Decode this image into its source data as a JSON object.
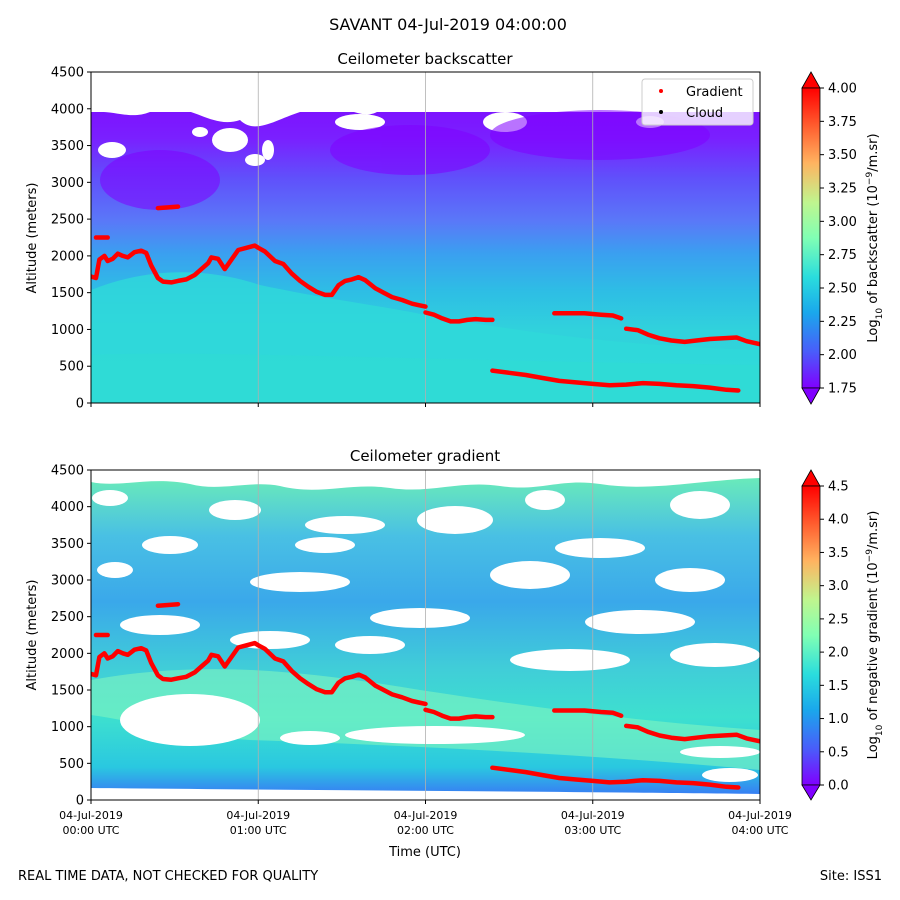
{
  "figure": {
    "suptitle": "SAVANT 04-Jul-2019 04:00:00",
    "footer_left": "REAL TIME DATA, NOT CHECKED FOR QUALITY",
    "footer_right": "Site: ISS1"
  },
  "chart_data": [
    {
      "type": "heatmap",
      "title": "Ceilometer backscatter",
      "xlabel": "Time (UTC)",
      "ylabel": "Altitude (meters)",
      "xlim_hours": [
        0,
        4
      ],
      "ylim": [
        0,
        4500
      ],
      "yticks": [
        "0",
        "500",
        "1000",
        "1500",
        "2000",
        "2500",
        "3000",
        "3500",
        "4000",
        "4500"
      ],
      "xticks": [
        {
          "line1": "04-Jul-2019",
          "line2": "00:00 UTC"
        },
        {
          "line1": "04-Jul-2019",
          "line2": "01:00 UTC"
        },
        {
          "line1": "04-Jul-2019",
          "line2": "02:00 UTC"
        },
        {
          "line1": "04-Jul-2019",
          "line2": "03:00 UTC"
        },
        {
          "line1": "04-Jul-2019",
          "line2": "04:00 UTC"
        }
      ],
      "show_xtick_labels": false,
      "colorbar": {
        "label_prefix": "Log",
        "label_sub": "10",
        "label_mid": " of backscatter (10",
        "label_sup": "−9",
        "label_suffix": "/m.sr)",
        "range": [
          1.75,
          4.0
        ],
        "ticks": [
          "1.75",
          "2.00",
          "2.25",
          "2.50",
          "2.75",
          "3.00",
          "3.25",
          "3.50",
          "3.75",
          "4.00"
        ]
      },
      "legend": {
        "position": "top-right",
        "entries": [
          {
            "label": "Gradient",
            "color": "#ff0000"
          },
          {
            "label": "Cloud",
            "color": "#000000"
          }
        ]
      }
    },
    {
      "type": "heatmap",
      "title": "Ceilometer gradient",
      "xlabel": "Time (UTC)",
      "ylabel": "Altitude (meters)",
      "xlim_hours": [
        0,
        4
      ],
      "ylim": [
        0,
        4500
      ],
      "yticks": [
        "0",
        "500",
        "1000",
        "1500",
        "2000",
        "2500",
        "3000",
        "3500",
        "4000",
        "4500"
      ],
      "xticks": [
        {
          "line1": "04-Jul-2019",
          "line2": "00:00 UTC"
        },
        {
          "line1": "04-Jul-2019",
          "line2": "01:00 UTC"
        },
        {
          "line1": "04-Jul-2019",
          "line2": "02:00 UTC"
        },
        {
          "line1": "04-Jul-2019",
          "line2": "03:00 UTC"
        },
        {
          "line1": "04-Jul-2019",
          "line2": "04:00 UTC"
        }
      ],
      "show_xtick_labels": true,
      "colorbar": {
        "label_prefix": "Log",
        "label_sub": "10",
        "label_mid": " of negative gradient (10",
        "label_sup": "−9",
        "label_suffix": "/m.sr)",
        "range": [
          0.0,
          4.5
        ],
        "ticks": [
          "0.0",
          "0.5",
          "1.0",
          "1.5",
          "2.0",
          "2.5",
          "3.0",
          "3.5",
          "4.0",
          "4.5"
        ]
      }
    }
  ],
  "gradient_series": {
    "name": "Gradient",
    "color": "#ff0000",
    "segments": [
      [
        [
          0.0,
          1720
        ],
        [
          0.03,
          1700
        ],
        [
          0.05,
          1950
        ],
        [
          0.08,
          2000
        ],
        [
          0.1,
          1930
        ],
        [
          0.13,
          1960
        ],
        [
          0.16,
          2030
        ],
        [
          0.19,
          2000
        ],
        [
          0.22,
          1980
        ],
        [
          0.26,
          2050
        ],
        [
          0.3,
          2070
        ],
        [
          0.33,
          2040
        ],
        [
          0.36,
          1870
        ],
        [
          0.4,
          1700
        ],
        [
          0.43,
          1650
        ],
        [
          0.48,
          1640
        ],
        [
          0.52,
          1660
        ],
        [
          0.57,
          1680
        ],
        [
          0.62,
          1740
        ],
        [
          0.66,
          1820
        ],
        [
          0.7,
          1900
        ],
        [
          0.72,
          1980
        ],
        [
          0.76,
          1960
        ],
        [
          0.8,
          1820
        ],
        [
          0.84,
          1950
        ],
        [
          0.88,
          2080
        ],
        [
          0.93,
          2110
        ],
        [
          0.98,
          2140
        ],
        [
          1.0,
          2110
        ],
        [
          1.04,
          2060
        ],
        [
          1.1,
          1930
        ],
        [
          1.15,
          1890
        ],
        [
          1.2,
          1760
        ],
        [
          1.25,
          1660
        ],
        [
          1.3,
          1580
        ],
        [
          1.35,
          1510
        ],
        [
          1.4,
          1470
        ],
        [
          1.44,
          1470
        ],
        [
          1.48,
          1600
        ],
        [
          1.52,
          1660
        ],
        [
          1.56,
          1680
        ],
        [
          1.6,
          1710
        ],
        [
          1.64,
          1670
        ],
        [
          1.7,
          1560
        ],
        [
          1.75,
          1500
        ],
        [
          1.8,
          1440
        ],
        [
          1.86,
          1400
        ],
        [
          1.92,
          1350
        ],
        [
          1.96,
          1330
        ],
        [
          2.0,
          1310
        ]
      ],
      [
        [
          2.0,
          1230
        ],
        [
          2.05,
          1200
        ],
        [
          2.1,
          1150
        ],
        [
          2.15,
          1110
        ],
        [
          2.2,
          1110
        ],
        [
          2.25,
          1130
        ],
        [
          2.3,
          1140
        ],
        [
          2.36,
          1130
        ],
        [
          2.4,
          1130
        ]
      ],
      [
        [
          2.4,
          440
        ],
        [
          2.5,
          410
        ],
        [
          2.6,
          380
        ],
        [
          2.7,
          340
        ],
        [
          2.8,
          300
        ],
        [
          2.9,
          280
        ],
        [
          3.0,
          260
        ],
        [
          3.1,
          240
        ],
        [
          3.2,
          250
        ],
        [
          3.3,
          270
        ],
        [
          3.4,
          260
        ],
        [
          3.5,
          240
        ],
        [
          3.6,
          230
        ],
        [
          3.7,
          210
        ],
        [
          3.8,
          180
        ],
        [
          3.87,
          170
        ]
      ],
      [
        [
          2.77,
          1220
        ],
        [
          2.85,
          1220
        ],
        [
          2.95,
          1220
        ],
        [
          3.05,
          1200
        ],
        [
          3.12,
          1190
        ],
        [
          3.17,
          1150
        ]
      ],
      [
        [
          3.2,
          1010
        ],
        [
          3.27,
          990
        ],
        [
          3.33,
          930
        ],
        [
          3.4,
          880
        ],
        [
          3.47,
          850
        ],
        [
          3.55,
          830
        ],
        [
          3.62,
          850
        ],
        [
          3.7,
          870
        ],
        [
          3.78,
          880
        ],
        [
          3.86,
          890
        ],
        [
          3.92,
          840
        ],
        [
          4.0,
          800
        ]
      ],
      [
        [
          0.03,
          2250
        ],
        [
          0.1,
          2250
        ]
      ],
      [
        [
          0.4,
          2650
        ],
        [
          0.52,
          2670
        ]
      ]
    ]
  }
}
